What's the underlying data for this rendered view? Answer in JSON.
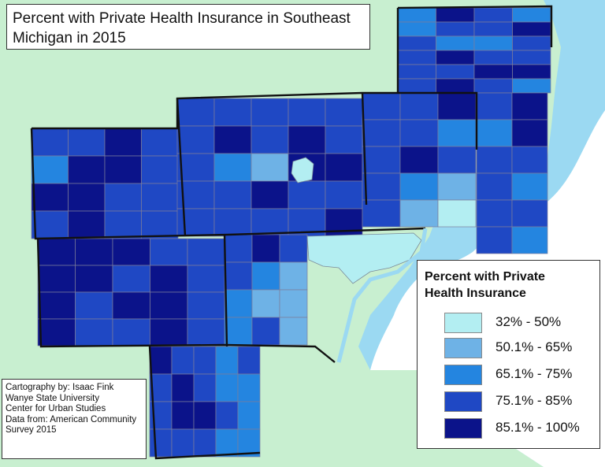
{
  "title_lines": [
    "Percent with Private Health Insurance in Southeast",
    "Michigan in 2015"
  ],
  "legend": {
    "title_lines": [
      "Percent with Private",
      "Health Insurance"
    ],
    "classes": [
      {
        "label": "32% - 50%",
        "color": "#b3eef2"
      },
      {
        "label": "50.1% - 65%",
        "color": "#6eb2e6"
      },
      {
        "label": "65.1% - 75%",
        "color": "#2485e0"
      },
      {
        "label": "75.1% - 85%",
        "color": "#1f48c4"
      },
      {
        "label": "85.1% - 100%",
        "color": "#0b138a"
      }
    ]
  },
  "credits": [
    "Cartography by: Isaac Fink",
    "Wanye State University",
    "Center for Urban Studies",
    "Data from: American Community",
    "Survey 2015"
  ],
  "colors": {
    "land_background": "#c8efd0",
    "water": "#9bd9f2",
    "outside_land": "#ffffff"
  }
}
